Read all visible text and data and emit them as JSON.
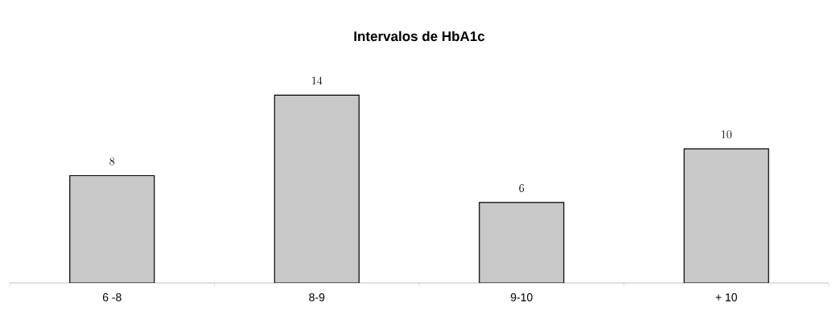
{
  "chart_data": {
    "type": "bar",
    "title": "Intervalos de HbA1c",
    "categories": [
      "6 -8",
      "8-9",
      "9-10",
      "+ 10"
    ],
    "values": [
      8,
      14,
      6,
      10
    ],
    "color": "#c8c8c8",
    "data_labels": true
  }
}
